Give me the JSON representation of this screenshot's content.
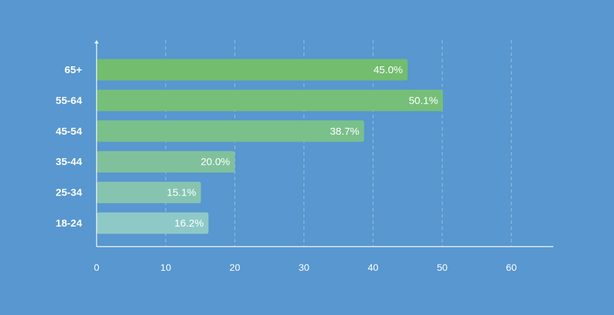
{
  "chart_data": {
    "type": "bar",
    "orientation": "horizontal",
    "categories": [
      "65+",
      "55-64",
      "45-54",
      "35-44",
      "25-34",
      "18-24"
    ],
    "values": [
      45.0,
      50.1,
      38.7,
      20.0,
      15.1,
      16.2
    ],
    "value_labels": [
      "45.0%",
      "50.1%",
      "38.7%",
      "20.0%",
      "15.1%",
      "16.2%"
    ],
    "bar_colors": [
      "#72bd6e",
      "#76bf78",
      "#7ac08b",
      "#80c19c",
      "#86c4b0",
      "#8ec9c7"
    ],
    "x_ticks": [
      "0",
      "10",
      "20",
      "30",
      "40",
      "50",
      "60"
    ],
    "xlim": [
      0,
      66
    ],
    "grid": "vertical dashed",
    "title": "",
    "xlabel": "",
    "ylabel": ""
  },
  "colors": {
    "background": "#5897cf",
    "axis": "#ffffff",
    "grid": "#9cc2e4"
  }
}
